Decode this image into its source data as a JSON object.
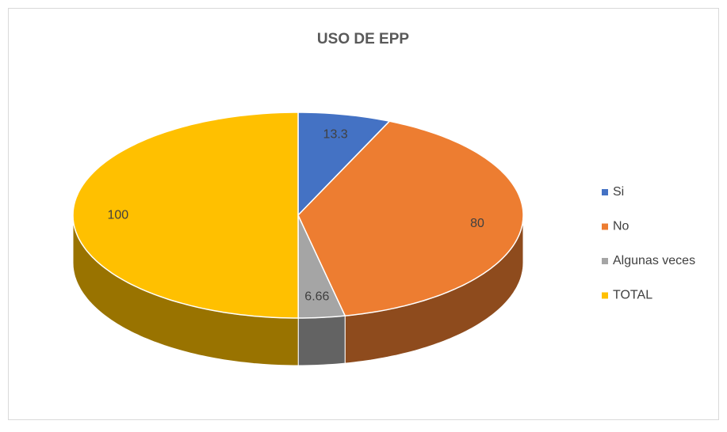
{
  "chart_data": {
    "type": "pie3d",
    "title": "USO DE EPP",
    "categories": [
      "Si",
      "No",
      "Algunas veces",
      "TOTAL"
    ],
    "values": [
      13.3,
      80,
      6.66,
      100
    ],
    "colors": [
      "#4472c4",
      "#ed7d31",
      "#a5a5a5",
      "#ffc000"
    ],
    "legend": "right"
  }
}
